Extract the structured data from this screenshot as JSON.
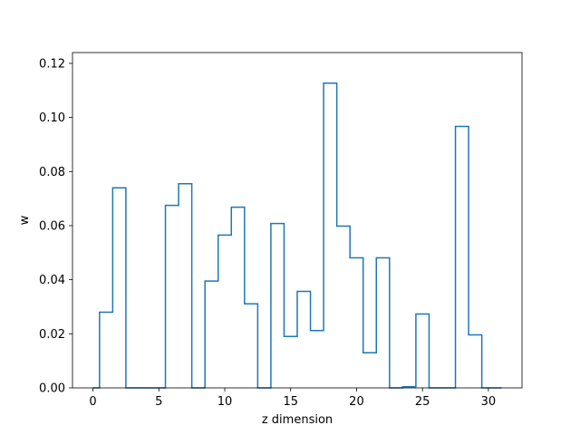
{
  "chart_data": {
    "type": "line",
    "title": "",
    "xlabel": "z dimension",
    "ylabel": "w",
    "xlim": [
      -1.55,
      32.55
    ],
    "ylim": [
      0.0,
      0.124
    ],
    "grid": false,
    "series_color": "#1f77b4",
    "x_ticks": [
      0,
      5,
      10,
      15,
      20,
      25,
      30
    ],
    "x_tick_labels": [
      "0",
      "5",
      "10",
      "15",
      "20",
      "25",
      "30"
    ],
    "y_ticks": [
      0.0,
      0.02,
      0.04,
      0.06,
      0.08,
      0.1,
      0.12
    ],
    "y_tick_labels": [
      "0.00",
      "0.02",
      "0.04",
      "0.06",
      "0.08",
      "0.10",
      "0.12"
    ],
    "series": [
      {
        "x": [
          0,
          1,
          2,
          3,
          4,
          5,
          6,
          7,
          8,
          9,
          10,
          11,
          12,
          13,
          14,
          15,
          16,
          17,
          18,
          19,
          20,
          21,
          22,
          23,
          24,
          25,
          26,
          27,
          28,
          29,
          30,
          31
        ],
        "values": [
          0.0,
          0.028,
          0.074,
          0.0,
          0.0,
          0.0,
          0.0675,
          0.0755,
          0.0,
          0.0395,
          0.0565,
          0.0668,
          0.0311,
          0.0,
          0.0608,
          0.019,
          0.0357,
          0.0212,
          0.1127,
          0.0598,
          0.0481,
          0.013,
          0.0481,
          0.0,
          0.0004,
          0.0273,
          0.0,
          0.0,
          0.0967,
          0.0196,
          0.0,
          0.0
        ]
      }
    ]
  }
}
